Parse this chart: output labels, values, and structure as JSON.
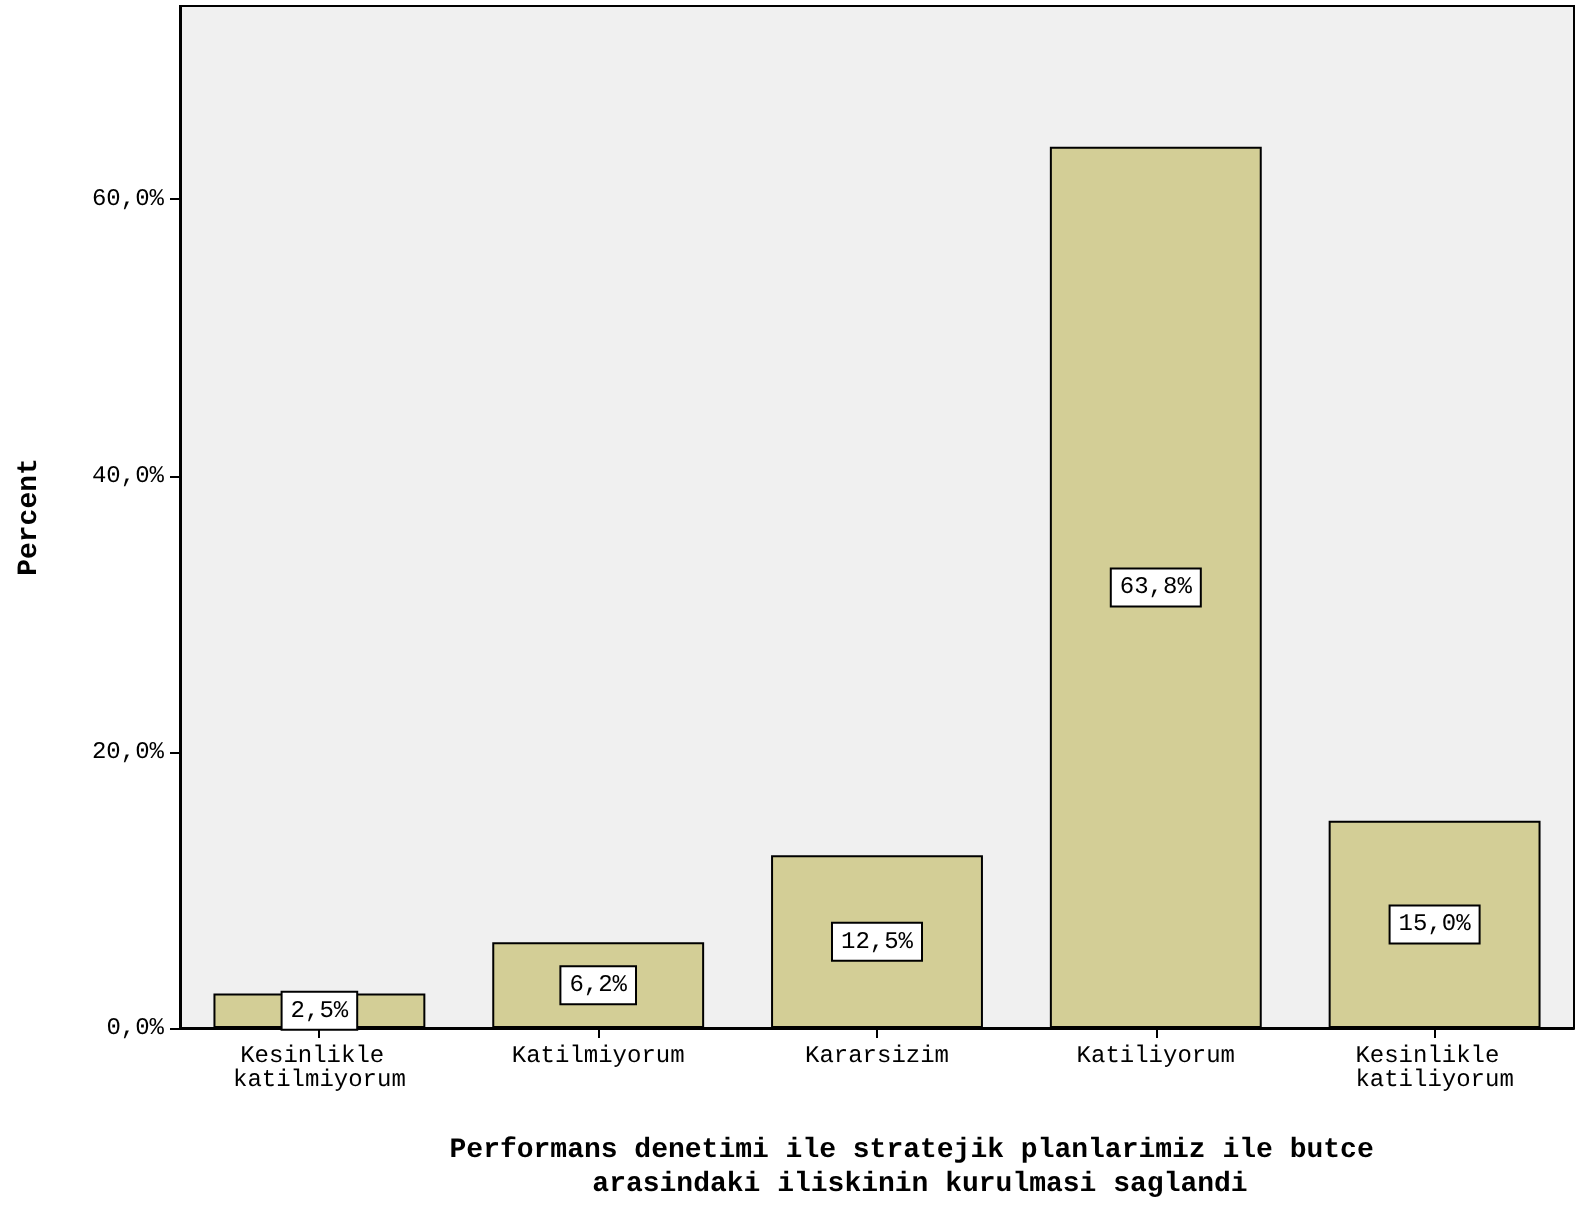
{
  "chart_data": {
    "type": "bar",
    "xlabel": "Performans denetimi ile stratejik planlarimiz ile butce arasindaki iliskinin kurulmasi saglandi",
    "ylabel": "Percent",
    "categories": [
      "Kesinlikle katilmiyorum",
      "Katilmiyorum",
      "Kararsizim",
      "Katiliyorum",
      "Kesinlikle katiliyorum"
    ],
    "values": [
      2.5,
      6.2,
      12.5,
      63.8,
      15.0
    ],
    "value_labels": [
      "2,5%",
      "6,2%",
      "12,5%",
      "63,8%",
      "15,0%"
    ],
    "color": "#d3ce96",
    "ylim": [
      0,
      74
    ],
    "yticks": [
      {
        "value": 0,
        "label": "0,0%"
      },
      {
        "value": 20,
        "label": "20,0%"
      },
      {
        "value": 40,
        "label": "40,0%"
      },
      {
        "value": 60,
        "label": "60,0%"
      }
    ],
    "grid": false
  }
}
